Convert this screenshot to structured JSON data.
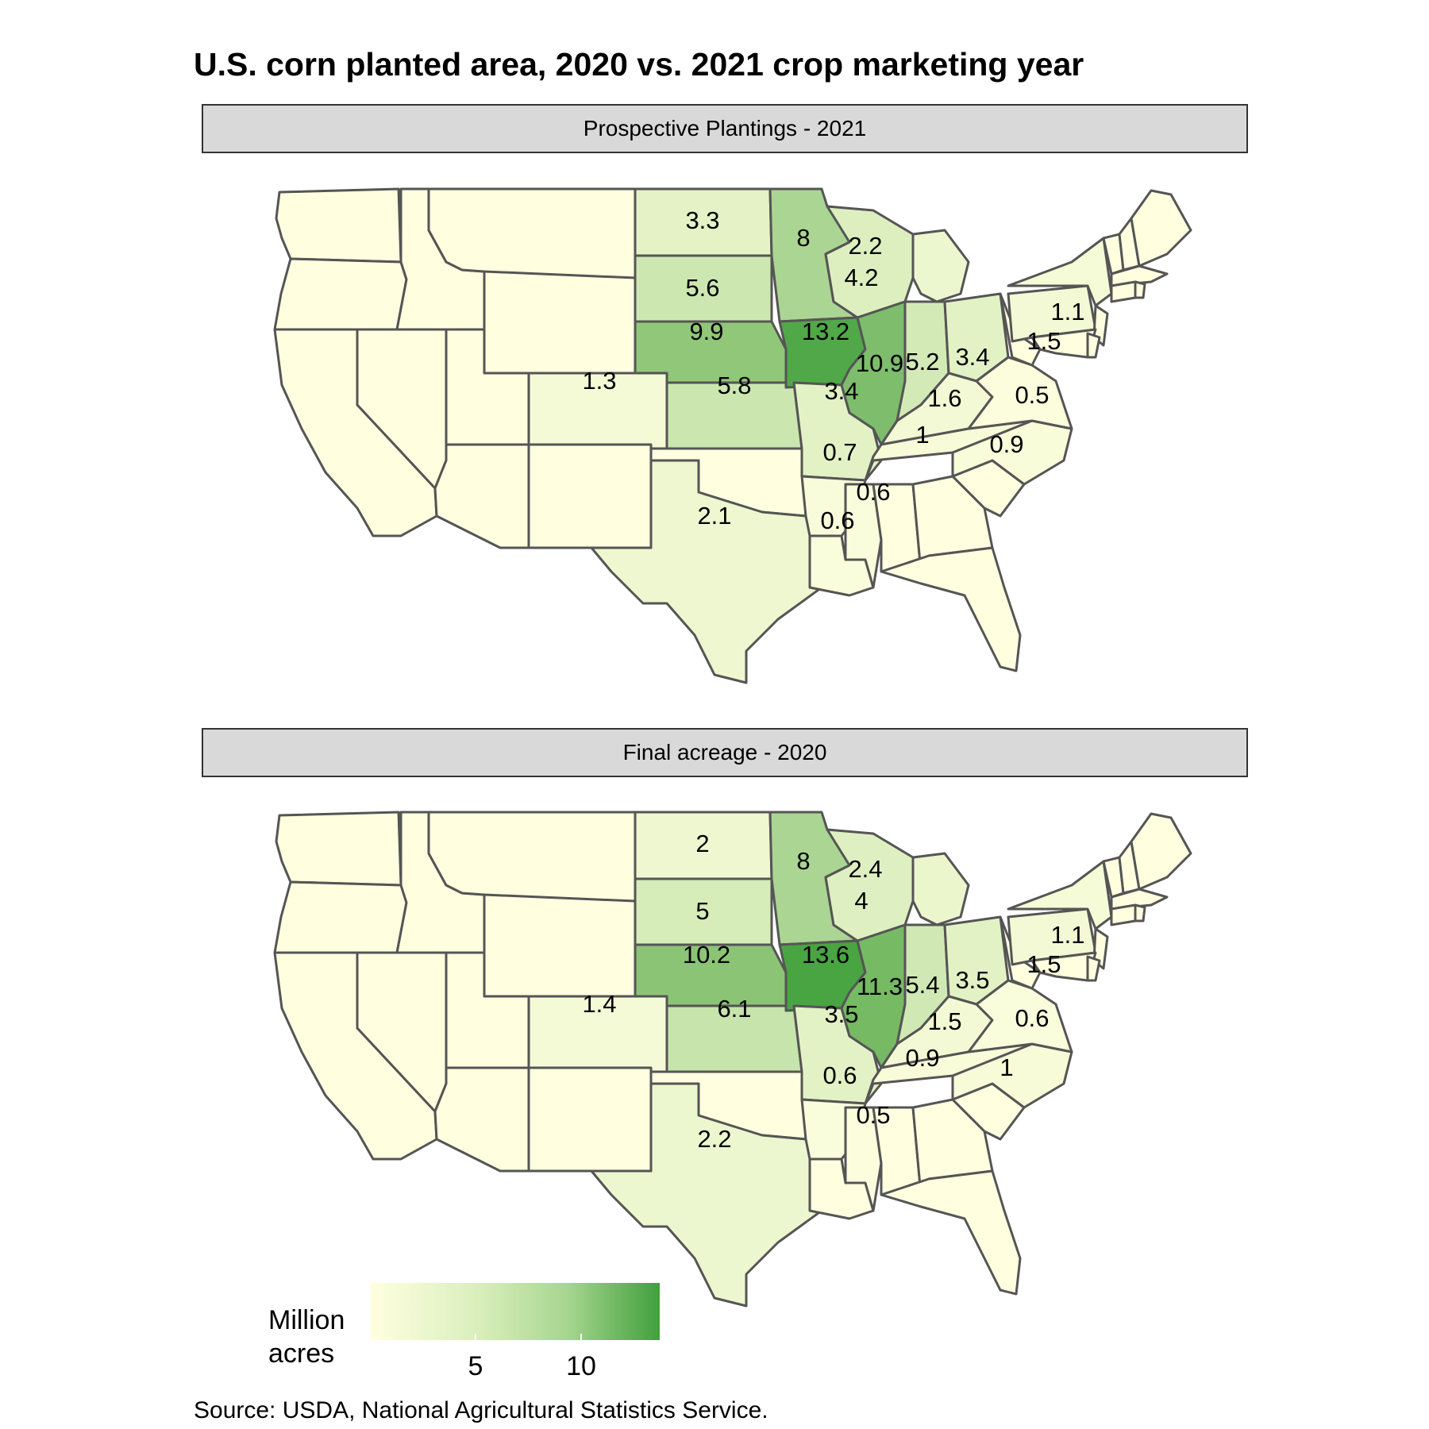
{
  "title": "U.S. corn planted area, 2020 vs. 2021 crop marketing year",
  "panels": [
    {
      "strip": "Prospective Plantings - 2021",
      "values": {
        "ND": "3.3",
        "MN": "8",
        "SD": "5.6",
        "WI": "4.2",
        "MI": "2.2",
        "NY": "1.1",
        "NE": "9.9",
        "IA": "13.2",
        "PA": "1.5",
        "OH": "3.4",
        "IN": "5.2",
        "IL": "10.9",
        "CO": "1.3",
        "KS": "5.8",
        "MO": "3.4",
        "KY": "1.6",
        "VA": "0.5",
        "TN": "1",
        "NC": "0.9",
        "AR": "0.7",
        "MS": "0.6",
        "TX": "2.1",
        "LA": "0.6"
      }
    },
    {
      "strip": "Final acreage - 2020",
      "values": {
        "ND": "2",
        "MN": "8",
        "SD": "5",
        "WI": "4",
        "MI": "2.4",
        "NY": "1.1",
        "NE": "10.2",
        "IA": "13.6",
        "PA": "1.5",
        "OH": "3.5",
        "IN": "5.4",
        "IL": "11.3",
        "CO": "1.4",
        "KS": "6.1",
        "MO": "3.5",
        "KY": "1.5",
        "VA": "0.6",
        "TN": "0.9",
        "NC": "1",
        "AR": "0.6",
        "MS": "0.5",
        "TX": "2.2"
      }
    }
  ],
  "legend": {
    "title": "Million acres",
    "ticks": [
      "5",
      "10"
    ]
  },
  "source": "Source: USDA, National Agricultural Statistics Service."
}
